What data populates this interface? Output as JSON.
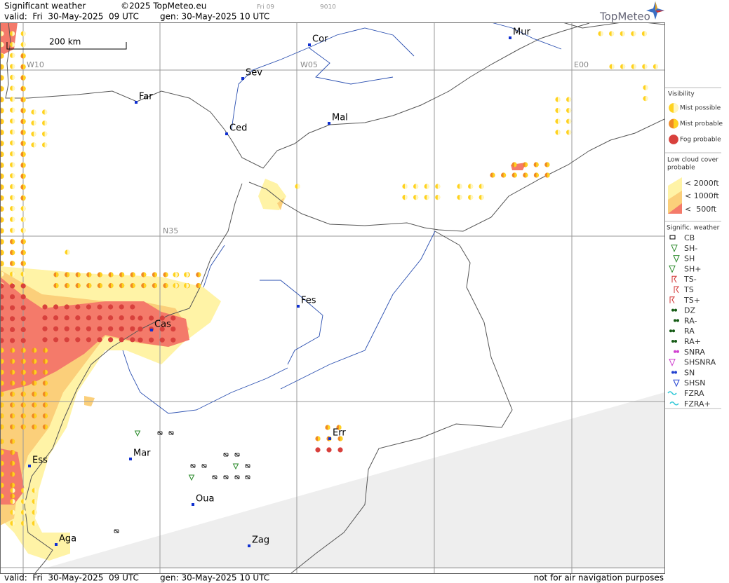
{
  "header": {
    "title": "Significant weather",
    "copyright": "©2025 TopMeteo.eu",
    "run": "Fri 09",
    "code": "9010",
    "valid": "valid:  Fri  30-May-2025  09 UTC",
    "gen": "gen: 30-May-2025 10 UTC",
    "brand": "TopMeteo"
  },
  "scale": "200 km",
  "grid_labels": [
    "W10",
    "W05",
    "E00",
    "N35"
  ],
  "cities": [
    "Cor",
    "Mur",
    "Sev",
    "Far",
    "Mal",
    "Ced",
    "Fes",
    "Cas",
    "Err",
    "Mar",
    "Ess",
    "Oua",
    "Aga",
    "Zag"
  ],
  "legend": {
    "visibility": {
      "title": "Visibility",
      "items": [
        "Mist possible",
        "Mist probable",
        "Fog probable"
      ]
    },
    "low_cloud": {
      "title": [
        "Low cloud cover",
        "probable"
      ],
      "items": [
        "< 2000ft",
        "< 1000ft",
        "<  500ft"
      ]
    },
    "signif": {
      "title": "Signific. weather",
      "items": [
        "CB",
        "SH-",
        "SH",
        "SH+",
        "TS-",
        "TS",
        "TS+",
        "DZ",
        "RA-",
        "RA",
        "RA+",
        "SNRA",
        "SHSNRA",
        "SN",
        "SHSN",
        "FZRA",
        "FZRA+"
      ]
    }
  },
  "footer": {
    "valid": "valid:  Fri  30-May-2025  09 UTC",
    "gen": "gen: 30-May-2025 10 UTC",
    "disclaimer": "not for air navigation purposes"
  }
}
